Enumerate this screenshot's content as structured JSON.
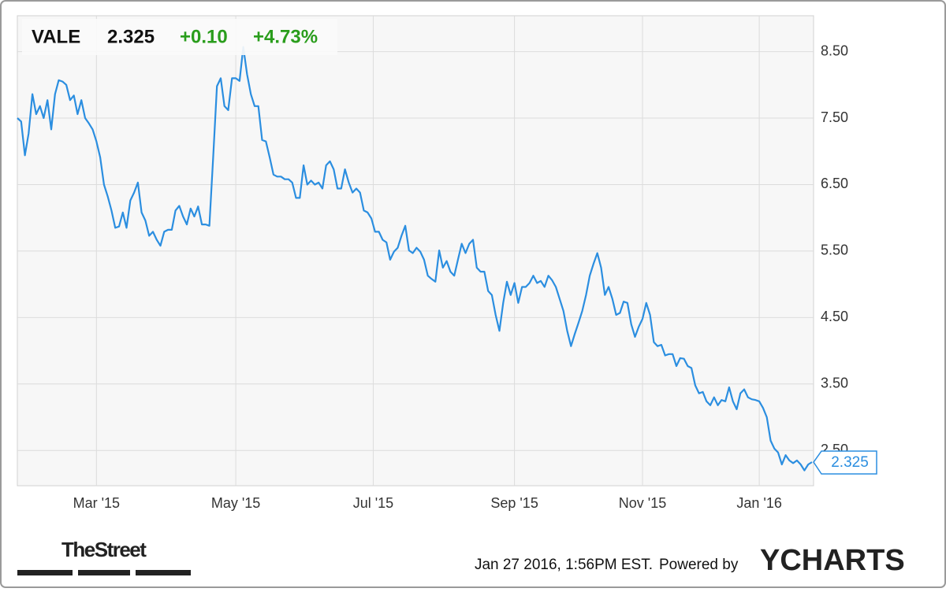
{
  "chart_data": {
    "type": "line",
    "symbol": "VALE",
    "price": 2.325,
    "change": "+0.10",
    "change_pct": "+4.73%",
    "timestamp": "Jan 27 2016, 1:56PM EST.",
    "powered_by": "Powered by",
    "brand": "YCHARTS",
    "source": "TheStreet",
    "color": "#2b8ee0",
    "grid": true,
    "ylim": [
      1.97,
      9.04
    ],
    "yticks": [
      {
        "value": 2.5,
        "label": "2.50"
      },
      {
        "value": 3.5,
        "label": "3.50"
      },
      {
        "value": 4.5,
        "label": "4.50"
      },
      {
        "value": 5.5,
        "label": "5.50"
      },
      {
        "value": 6.5,
        "label": "6.50"
      },
      {
        "value": 7.5,
        "label": "7.50"
      },
      {
        "value": 8.5,
        "label": "8.50"
      }
    ],
    "xticks": [
      {
        "value": 21,
        "label": "Mar '15"
      },
      {
        "value": 58,
        "label": "May '15"
      },
      {
        "value": 94.5,
        "label": "Jul '15"
      },
      {
        "value": 132,
        "label": "Sep '15"
      },
      {
        "value": 166,
        "label": "Nov '15"
      },
      {
        "value": 197,
        "label": "Jan '16"
      }
    ],
    "values": [
      7.5,
      7.45,
      6.94,
      7.27,
      7.86,
      7.56,
      7.68,
      7.5,
      7.77,
      7.33,
      7.86,
      8.07,
      8.05,
      8.0,
      7.77,
      7.84,
      7.56,
      7.77,
      7.5,
      7.42,
      7.33,
      7.15,
      6.91,
      6.5,
      6.32,
      6.11,
      5.85,
      5.87,
      6.08,
      5.85,
      6.26,
      6.38,
      6.53,
      6.08,
      5.96,
      5.73,
      5.79,
      5.67,
      5.58,
      5.79,
      5.82,
      5.82,
      6.11,
      6.18,
      6.02,
      5.9,
      6.14,
      6.02,
      6.17,
      5.9,
      5.9,
      5.88,
      6.91,
      7.98,
      8.1,
      7.68,
      7.62,
      8.1,
      8.1,
      8.06,
      8.57,
      8.16,
      7.86,
      7.68,
      7.68,
      7.17,
      7.15,
      6.91,
      6.65,
      6.62,
      6.62,
      6.58,
      6.58,
      6.53,
      6.3,
      6.3,
      6.79,
      6.5,
      6.56,
      6.5,
      6.53,
      6.44,
      6.79,
      6.85,
      6.73,
      6.44,
      6.44,
      6.73,
      6.53,
      6.38,
      6.44,
      6.38,
      6.11,
      6.08,
      5.99,
      5.79,
      5.79,
      5.67,
      5.63,
      5.37,
      5.49,
      5.55,
      5.73,
      5.88,
      5.51,
      5.47,
      5.55,
      5.49,
      5.37,
      5.13,
      5.08,
      5.04,
      5.51,
      5.25,
      5.35,
      5.19,
      5.13,
      5.37,
      5.61,
      5.47,
      5.61,
      5.67,
      5.25,
      5.19,
      5.19,
      4.9,
      4.84,
      4.54,
      4.3,
      4.72,
      5.04,
      4.84,
      5.02,
      4.72,
      4.96,
      4.96,
      5.02,
      5.13,
      5.02,
      5.05,
      4.96,
      5.13,
      5.06,
      4.96,
      4.78,
      4.6,
      4.3,
      4.07,
      4.25,
      4.42,
      4.6,
      4.84,
      5.13,
      5.31,
      5.47,
      5.25,
      4.84,
      4.96,
      4.78,
      4.54,
      4.57,
      4.74,
      4.72,
      4.4,
      4.21,
      4.36,
      4.48,
      4.72,
      4.54,
      4.13,
      4.07,
      4.09,
      3.93,
      3.95,
      3.95,
      3.77,
      3.89,
      3.88,
      3.77,
      3.74,
      3.48,
      3.36,
      3.38,
      3.24,
      3.18,
      3.3,
      3.18,
      3.26,
      3.24,
      3.45,
      3.24,
      3.12,
      3.36,
      3.42,
      3.3,
      3.27,
      3.26,
      3.24,
      3.14,
      3.0,
      2.65,
      2.53,
      2.47,
      2.29,
      2.43,
      2.35,
      2.31,
      2.35,
      2.29,
      2.2,
      2.29,
      2.325
    ]
  }
}
